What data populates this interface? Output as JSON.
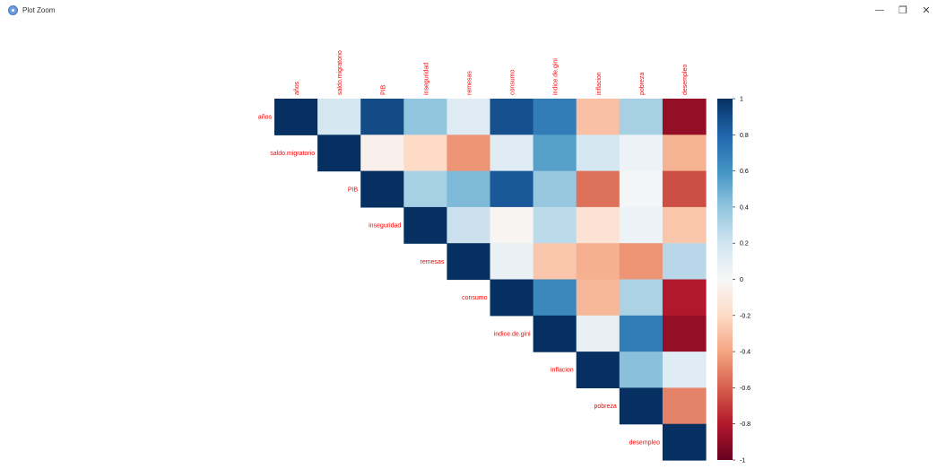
{
  "window": {
    "title": "Plot Zoom",
    "minimize_label": "—",
    "restore_label": "❐",
    "close_label": "✕"
  },
  "chart_data": {
    "type": "heatmap",
    "variables": [
      "años",
      "saldo.migratorio",
      "PIB",
      "inseguridad",
      "remesas",
      "consumo",
      "indice.de.gini",
      "inflacion",
      "pobreza",
      "desempleo"
    ],
    "matrix_upper": [
      [
        1.0,
        0.18,
        0.9,
        0.4,
        0.12,
        0.88,
        0.7,
        -0.3,
        0.33,
        -0.88
      ],
      [
        null,
        1.0,
        -0.05,
        -0.2,
        -0.45,
        0.12,
        0.55,
        0.18,
        0.06,
        -0.35
      ],
      [
        null,
        null,
        1.0,
        0.33,
        0.45,
        0.85,
        0.38,
        -0.55,
        0.02,
        -0.65
      ],
      [
        null,
        null,
        null,
        1.0,
        0.22,
        -0.02,
        0.27,
        -0.15,
        0.06,
        -0.28
      ],
      [
        null,
        null,
        null,
        null,
        1.0,
        0.07,
        -0.28,
        -0.36,
        -0.45,
        0.28
      ],
      [
        null,
        null,
        null,
        null,
        null,
        1.0,
        0.65,
        -0.33,
        0.32,
        -0.8
      ],
      [
        null,
        null,
        null,
        null,
        null,
        null,
        1.0,
        0.08,
        0.7,
        -0.88
      ],
      [
        null,
        null,
        null,
        null,
        null,
        null,
        null,
        1.0,
        0.42,
        0.12
      ],
      [
        null,
        null,
        null,
        null,
        null,
        null,
        null,
        null,
        1.0,
        -0.5
      ],
      [
        null,
        null,
        null,
        null,
        null,
        null,
        null,
        null,
        null,
        1.0
      ]
    ],
    "colorbar": {
      "min": -1,
      "max": 1,
      "ticks": [
        1,
        0.8,
        0.6,
        0.4,
        0.2,
        0,
        -0.2,
        -0.4,
        -0.6,
        -0.8,
        -1
      ],
      "tick_labels": [
        "1",
        "0.8",
        "0.6",
        "0.4",
        "0.2",
        "0",
        "-0.2",
        "-0.4",
        "-0.6",
        "-0.8",
        "-1"
      ],
      "colors": [
        "#67001f",
        "#b2182b",
        "#d6604d",
        "#f4a582",
        "#fddbc7",
        "#f7f7f7",
        "#d1e5f0",
        "#92c5de",
        "#4393c3",
        "#2166ac",
        "#053061"
      ]
    },
    "label_color": "#ff0000",
    "legend": "right"
  }
}
